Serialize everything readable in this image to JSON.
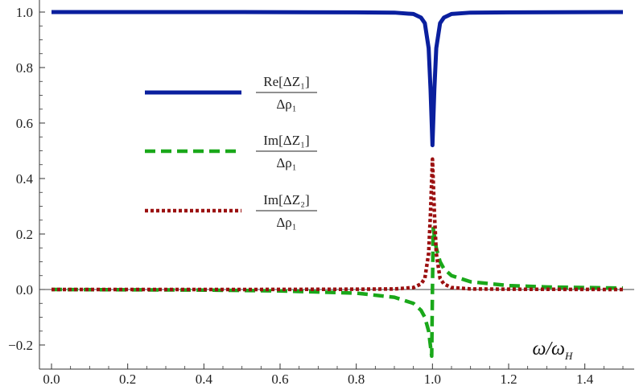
{
  "chart_data": {
    "type": "line",
    "title": "",
    "xlabel": "ω/ω_H",
    "xlabel_main": "ω/ω",
    "xlabel_sub": "H",
    "ylabel": "",
    "xlim": [
      0,
      1.5
    ],
    "ylim": [
      -0.24,
      1.0
    ],
    "x_ticks": [
      0.0,
      0.2,
      0.4,
      0.6,
      0.8,
      1.0,
      1.2,
      1.4
    ],
    "x_tick_labels": [
      "0.0",
      "0.2",
      "0.4",
      "0.6",
      "0.8",
      "1.0",
      "1.2",
      "1.4"
    ],
    "y_ticks": [
      -0.2,
      0.0,
      0.2,
      0.4,
      0.6,
      0.8,
      1.0
    ],
    "y_tick_labels": [
      "−0.2",
      "0.0",
      "0.2",
      "0.4",
      "0.6",
      "0.8",
      "1.0"
    ],
    "grid": false,
    "legend_position": "upper-left",
    "series": [
      {
        "label_num": "Re[ΔZ₁]",
        "label_den": "Δρ₁",
        "style": "solid",
        "color": "#0a1f9e",
        "x": [
          0.0,
          0.5,
          0.8,
          0.9,
          0.95,
          0.97,
          0.98,
          0.99,
          0.995,
          1.0,
          1.005,
          1.01,
          1.02,
          1.03,
          1.05,
          1.1,
          1.2,
          1.5
        ],
        "y": [
          1.0,
          1.0,
          0.999,
          0.998,
          0.993,
          0.98,
          0.96,
          0.87,
          0.72,
          0.52,
          0.72,
          0.87,
          0.96,
          0.98,
          0.993,
          0.998,
          0.999,
          1.0
        ]
      },
      {
        "label_num": "Im[ΔZ₁]",
        "label_den": "Δρ₁",
        "style": "dashed",
        "color": "#1aa81a",
        "x": [
          0.0,
          0.2,
          0.4,
          0.6,
          0.8,
          0.9,
          0.95,
          0.97,
          0.98,
          0.99,
          0.998,
          1.0,
          1.002,
          1.01,
          1.02,
          1.03,
          1.05,
          1.1,
          1.2,
          1.3,
          1.4,
          1.5
        ],
        "y": [
          0.0,
          -0.001,
          -0.002,
          -0.005,
          -0.013,
          -0.028,
          -0.05,
          -0.075,
          -0.1,
          -0.15,
          -0.24,
          0.0,
          0.22,
          0.15,
          0.1,
          0.075,
          0.05,
          0.028,
          0.014,
          0.009,
          0.007,
          0.005
        ]
      },
      {
        "label_num": "Im[ΔZ₂]",
        "label_den": "Δρ₁",
        "style": "dotted",
        "color": "#9b1010",
        "x": [
          0.0,
          0.5,
          0.8,
          0.9,
          0.95,
          0.97,
          0.98,
          0.99,
          0.995,
          1.0,
          1.005,
          1.01,
          1.02,
          1.03,
          1.05,
          1.1,
          1.2,
          1.5
        ],
        "y": [
          0.0,
          0.0,
          0.001,
          0.002,
          0.007,
          0.02,
          0.04,
          0.13,
          0.28,
          0.47,
          0.28,
          0.13,
          0.04,
          0.02,
          0.007,
          0.002,
          0.001,
          0.0
        ]
      }
    ]
  }
}
